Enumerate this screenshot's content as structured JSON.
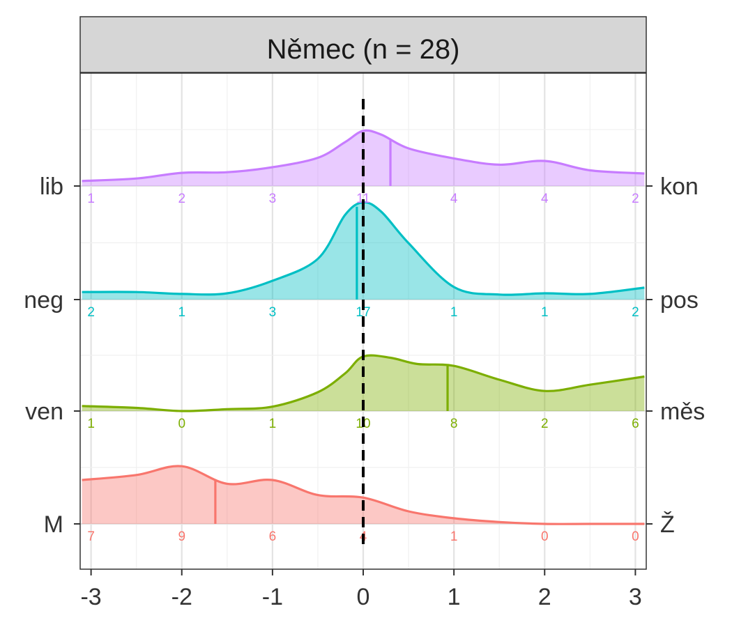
{
  "chart_data": {
    "type": "area",
    "title": "Němec (n = 28)",
    "xlabel": "",
    "ylabel": "",
    "xlim": [
      -3.12,
      3.12
    ],
    "x_ticks": [
      -3,
      -2,
      -1,
      0,
      1,
      2,
      3
    ],
    "x_tick_labels": [
      "-3",
      "-2",
      "-1",
      "0",
      "1",
      "2",
      "3"
    ],
    "reference_line_x": 0,
    "grid": true,
    "count_positions": [
      -3,
      -2,
      -1,
      0,
      1,
      2,
      3
    ],
    "rows": [
      {
        "left_label": "lib",
        "right_label": "kon",
        "color": "#C77CFF",
        "mean": 0.3,
        "counts": [
          "1",
          "2",
          "3",
          "11",
          "4",
          "4",
          "2"
        ],
        "density": [
          [
            -3.1,
            0.08
          ],
          [
            -2.5,
            0.12
          ],
          [
            -2,
            0.21
          ],
          [
            -1.5,
            0.22
          ],
          [
            -1,
            0.3
          ],
          [
            -0.5,
            0.45
          ],
          [
            -0.2,
            0.7
          ],
          [
            0,
            0.88
          ],
          [
            0.2,
            0.82
          ],
          [
            0.5,
            0.6
          ],
          [
            1,
            0.44
          ],
          [
            1.5,
            0.34
          ],
          [
            2,
            0.4
          ],
          [
            2.5,
            0.25
          ],
          [
            3.1,
            0.2
          ]
        ]
      },
      {
        "left_label": "neg",
        "right_label": "pos",
        "color": "#00BFC4",
        "mean": -0.07,
        "counts": [
          "2",
          "1",
          "3",
          "17",
          "1",
          "1",
          "2"
        ],
        "density": [
          [
            -3.1,
            0.12
          ],
          [
            -2.5,
            0.12
          ],
          [
            -2,
            0.09
          ],
          [
            -1.5,
            0.1
          ],
          [
            -1,
            0.3
          ],
          [
            -0.5,
            0.65
          ],
          [
            -0.2,
            1.35
          ],
          [
            0,
            1.55
          ],
          [
            0.2,
            1.4
          ],
          [
            0.5,
            0.9
          ],
          [
            1,
            0.2
          ],
          [
            1.5,
            0.08
          ],
          [
            2,
            0.1
          ],
          [
            2.5,
            0.09
          ],
          [
            3.1,
            0.19
          ]
        ]
      },
      {
        "left_label": "ven",
        "right_label": "měs",
        "color": "#7CAE00",
        "mean": 0.93,
        "counts": [
          "1",
          "0",
          "1",
          "10",
          "8",
          "2",
          "6"
        ],
        "density": [
          [
            -3.1,
            0.08
          ],
          [
            -2.5,
            0.05
          ],
          [
            -2,
            0.0
          ],
          [
            -1.5,
            0.03
          ],
          [
            -1,
            0.07
          ],
          [
            -0.5,
            0.3
          ],
          [
            -0.2,
            0.6
          ],
          [
            0,
            0.87
          ],
          [
            0.3,
            0.85
          ],
          [
            0.6,
            0.75
          ],
          [
            1,
            0.72
          ],
          [
            1.5,
            0.5
          ],
          [
            2,
            0.32
          ],
          [
            2.5,
            0.42
          ],
          [
            3.1,
            0.55
          ]
        ]
      },
      {
        "left_label": "M",
        "right_label": "Ž",
        "color": "#F8766D",
        "mean": -1.63,
        "counts": [
          "7",
          "9",
          "6",
          "4",
          "1",
          "0",
          "0"
        ],
        "density": [
          [
            -3.1,
            0.7
          ],
          [
            -2.5,
            0.78
          ],
          [
            -2,
            0.92
          ],
          [
            -1.5,
            0.64
          ],
          [
            -1,
            0.7
          ],
          [
            -0.5,
            0.46
          ],
          [
            0,
            0.42
          ],
          [
            0.5,
            0.2
          ],
          [
            1,
            0.09
          ],
          [
            1.5,
            0.03
          ],
          [
            2,
            0.0
          ],
          [
            2.5,
            0.0
          ],
          [
            3.1,
            0.0
          ]
        ]
      }
    ]
  }
}
